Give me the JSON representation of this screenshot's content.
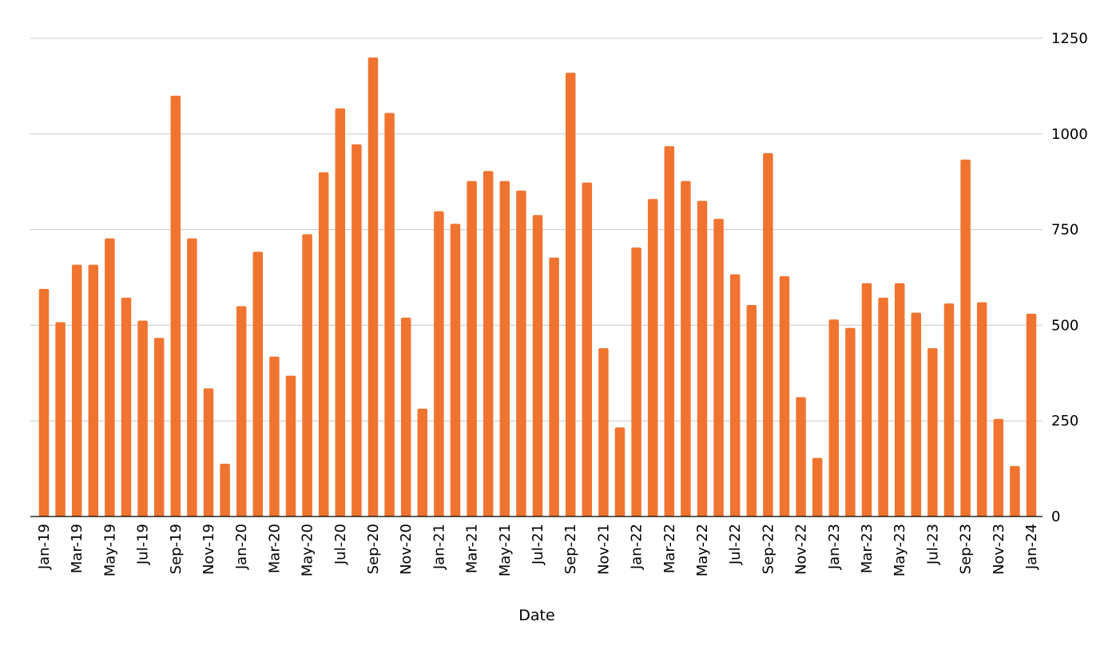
{
  "chart_data": {
    "type": "bar",
    "xlabel": "Date",
    "ylabel": "",
    "title": "",
    "ylim": [
      0,
      1250
    ],
    "yticks": [
      0,
      250,
      500,
      750,
      1000,
      1250
    ],
    "y_axis_side": "right",
    "grid": true,
    "legend": "none",
    "colors": {
      "bar": "#f07430",
      "grid": "#c8c8c8",
      "axis": "#000000"
    },
    "categories": [
      "Jan-19",
      "Feb-19",
      "Mar-19",
      "Apr-19",
      "May-19",
      "Jun-19",
      "Jul-19",
      "Aug-19",
      "Sep-19",
      "Oct-19",
      "Nov-19",
      "Dec-19",
      "Jan-20",
      "Feb-20",
      "Mar-20",
      "Apr-20",
      "May-20",
      "Jun-20",
      "Jul-20",
      "Aug-20",
      "Sep-20",
      "Oct-20",
      "Nov-20",
      "Dec-20",
      "Jan-21",
      "Feb-21",
      "Mar-21",
      "Apr-21",
      "May-21",
      "Jun-21",
      "Jul-21",
      "Aug-21",
      "Sep-21",
      "Oct-21",
      "Nov-21",
      "Dec-21",
      "Jan-22",
      "Feb-22",
      "Mar-22",
      "Apr-22",
      "May-22",
      "Jun-22",
      "Jul-22",
      "Aug-22",
      "Sep-22",
      "Oct-22",
      "Nov-22",
      "Dec-22",
      "Jan-23",
      "Feb-23",
      "Mar-23",
      "Apr-23",
      "May-23",
      "Jun-23",
      "Jul-23",
      "Aug-23",
      "Sep-23",
      "Oct-23",
      "Nov-23",
      "Dec-23",
      "Jan-24"
    ],
    "tick_labels": [
      "Jan-19",
      "Mar-19",
      "May-19",
      "Jul-19",
      "Sep-19",
      "Nov-19",
      "Jan-20",
      "Mar-20",
      "May-20",
      "Jul-20",
      "Sep-20",
      "Nov-20",
      "Jan-21",
      "Mar-21",
      "May-21",
      "Jul-21",
      "Sep-21",
      "Nov-21",
      "Jan-22",
      "Mar-22",
      "May-22",
      "Jul-22",
      "Sep-22",
      "Nov-22",
      "Jan-23",
      "Mar-23",
      "May-23",
      "Jul-23",
      "Sep-23",
      "Nov-23",
      "Jan-24"
    ],
    "values": [
      595,
      508,
      658,
      658,
      727,
      572,
      512,
      467,
      1100,
      727,
      335,
      138,
      550,
      692,
      418,
      368,
      738,
      900,
      1067,
      973,
      1200,
      1055,
      520,
      282,
      798,
      765,
      877,
      903,
      877,
      852,
      788,
      677,
      1160,
      873,
      440,
      233,
      703,
      830,
      968,
      877,
      825,
      778,
      633,
      553,
      950,
      628,
      312,
      153,
      515,
      493,
      610,
      572,
      610,
      533,
      440,
      557,
      933,
      560,
      255,
      132,
      530
    ]
  }
}
